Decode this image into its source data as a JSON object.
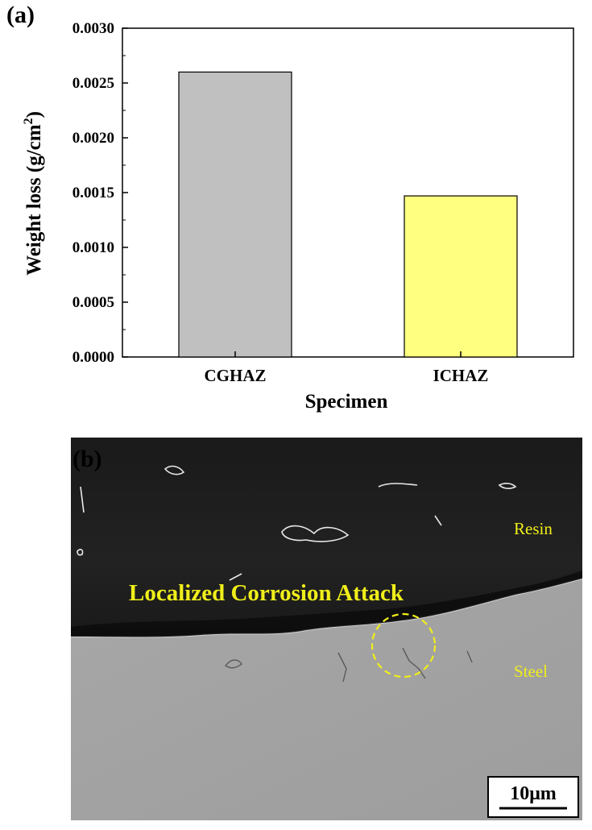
{
  "panel_a_label": "(a)",
  "panel_b_label": "(b)",
  "chart_data": {
    "type": "bar",
    "categories": [
      "CGHAZ",
      "ICHAZ"
    ],
    "values": [
      0.0026,
      0.00147
    ],
    "colors": [
      "#c0c0c0",
      "#ffff80"
    ],
    "title": "",
    "xlabel": "Specimen",
    "ylabel": "Weight loss (g/cm",
    "ylabel_superscript": "2",
    "ylabel_suffix": ")",
    "ylim": [
      0,
      0.003
    ],
    "yticks": [
      "0.0000",
      "0.0005",
      "0.0010",
      "0.0015",
      "0.0020",
      "0.0025",
      "0.0030"
    ],
    "grid": false,
    "legend": "none"
  },
  "micrograph": {
    "annotation": "Localized Corrosion Attack",
    "resin_label": "Resin",
    "steel_label": "Steel",
    "scale_bar": "10μm"
  }
}
